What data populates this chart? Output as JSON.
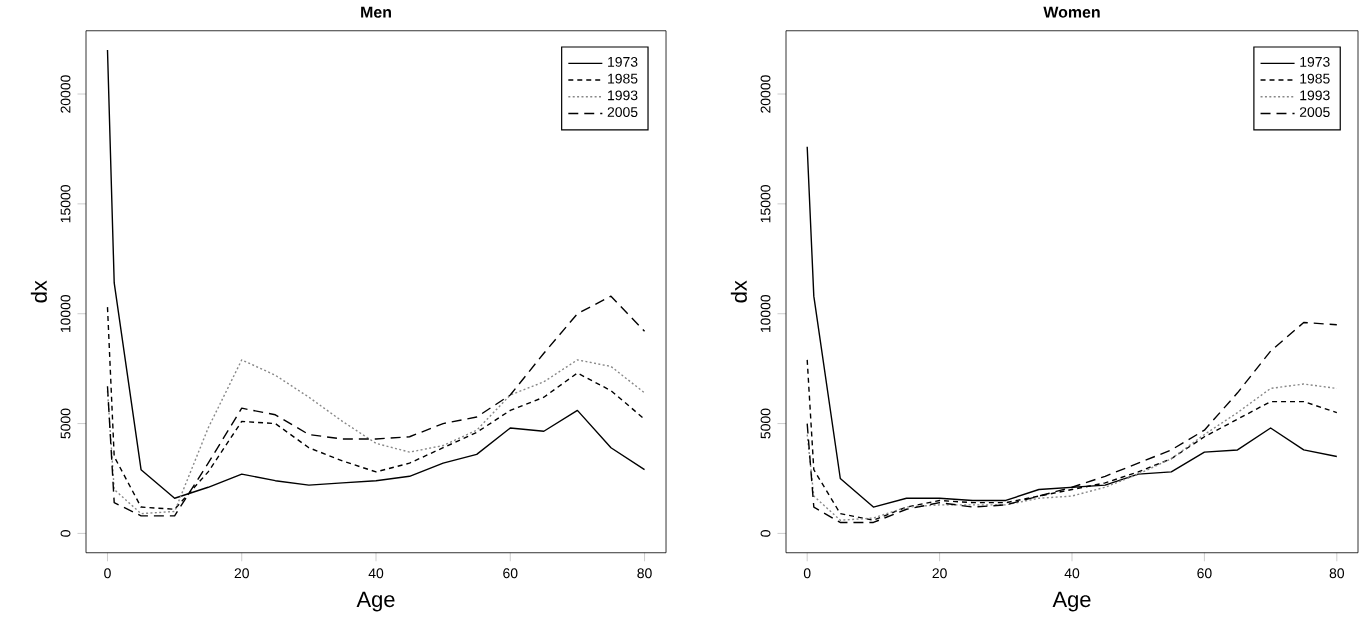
{
  "chart_data": [
    {
      "type": "line",
      "title": "Men",
      "xlabel": "Age",
      "ylabel": "dx",
      "x": [
        0,
        1,
        5,
        10,
        15,
        20,
        25,
        30,
        35,
        40,
        45,
        50,
        55,
        60,
        65,
        70,
        75,
        80
      ],
      "xlim": [
        -3.2,
        83.2
      ],
      "ylim": [
        -880,
        22880
      ],
      "xticks": [
        0,
        20,
        40,
        60,
        80
      ],
      "yticks": [
        0,
        5000,
        10000,
        15000,
        20000
      ],
      "legend": "top right",
      "grid": false,
      "series": [
        {
          "name": "1973",
          "color": "#000000",
          "line_style": "solid",
          "values": [
            22000,
            11400,
            2900,
            1600,
            2100,
            2700,
            2400,
            2200,
            2300,
            2400,
            2600,
            3200,
            3600,
            4800,
            4650,
            5600,
            3900,
            2900
          ]
        },
        {
          "name": "1985",
          "color": "#000000",
          "line_style": "dashed",
          "values": [
            10300,
            3500,
            1200,
            1100,
            2800,
            5100,
            5000,
            3900,
            3300,
            2800,
            3200,
            3900,
            4600,
            5600,
            6200,
            7300,
            6500,
            5200
          ]
        },
        {
          "name": "1993",
          "color": "#888888",
          "line_style": "dotted",
          "values": [
            6500,
            2000,
            900,
            1000,
            4800,
            7900,
            7200,
            6200,
            5100,
            4100,
            3700,
            4000,
            4700,
            6300,
            6900,
            7900,
            7600,
            6400
          ]
        },
        {
          "name": "2005",
          "color": "#000000",
          "line_style": "dashed",
          "values": [
            6700,
            1400,
            800,
            800,
            3200,
            5700,
            5400,
            4500,
            4300,
            4300,
            4400,
            5000,
            5300,
            6300,
            8200,
            10000,
            10800,
            9200
          ]
        }
      ]
    },
    {
      "type": "line",
      "title": "Women",
      "xlabel": "Age",
      "ylabel": "dx",
      "x": [
        0,
        1,
        5,
        10,
        15,
        20,
        25,
        30,
        35,
        40,
        45,
        50,
        55,
        60,
        65,
        70,
        75,
        80
      ],
      "xlim": [
        -3.2,
        83.2
      ],
      "ylim": [
        -880,
        22880
      ],
      "xticks": [
        0,
        20,
        40,
        60,
        80
      ],
      "yticks": [
        0,
        5000,
        10000,
        15000,
        20000
      ],
      "legend": "top right",
      "grid": false,
      "series": [
        {
          "name": "1973",
          "color": "#000000",
          "line_style": "solid",
          "values": [
            17600,
            10800,
            2500,
            1200,
            1600,
            1600,
            1500,
            1500,
            2000,
            2100,
            2200,
            2700,
            2800,
            3700,
            3800,
            4800,
            3800,
            3500
          ]
        },
        {
          "name": "1985",
          "color": "#000000",
          "line_style": "dashed",
          "values": [
            7900,
            2900,
            900,
            600,
            1200,
            1500,
            1400,
            1400,
            1700,
            2000,
            2300,
            2800,
            3400,
            4400,
            5200,
            6000,
            6000,
            5500
          ]
        },
        {
          "name": "1993",
          "color": "#888888",
          "line_style": "dotted",
          "values": [
            4500,
            1700,
            600,
            700,
            1200,
            1300,
            1300,
            1300,
            1600,
            1700,
            2100,
            2700,
            3400,
            4500,
            5500,
            6600,
            6800,
            6600
          ]
        },
        {
          "name": "2005",
          "color": "#000000",
          "line_style": "dashed",
          "values": [
            5000,
            1200,
            500,
            500,
            1100,
            1400,
            1200,
            1300,
            1700,
            2100,
            2600,
            3200,
            3800,
            4700,
            6400,
            8300,
            9600,
            9500
          ]
        }
      ]
    }
  ]
}
